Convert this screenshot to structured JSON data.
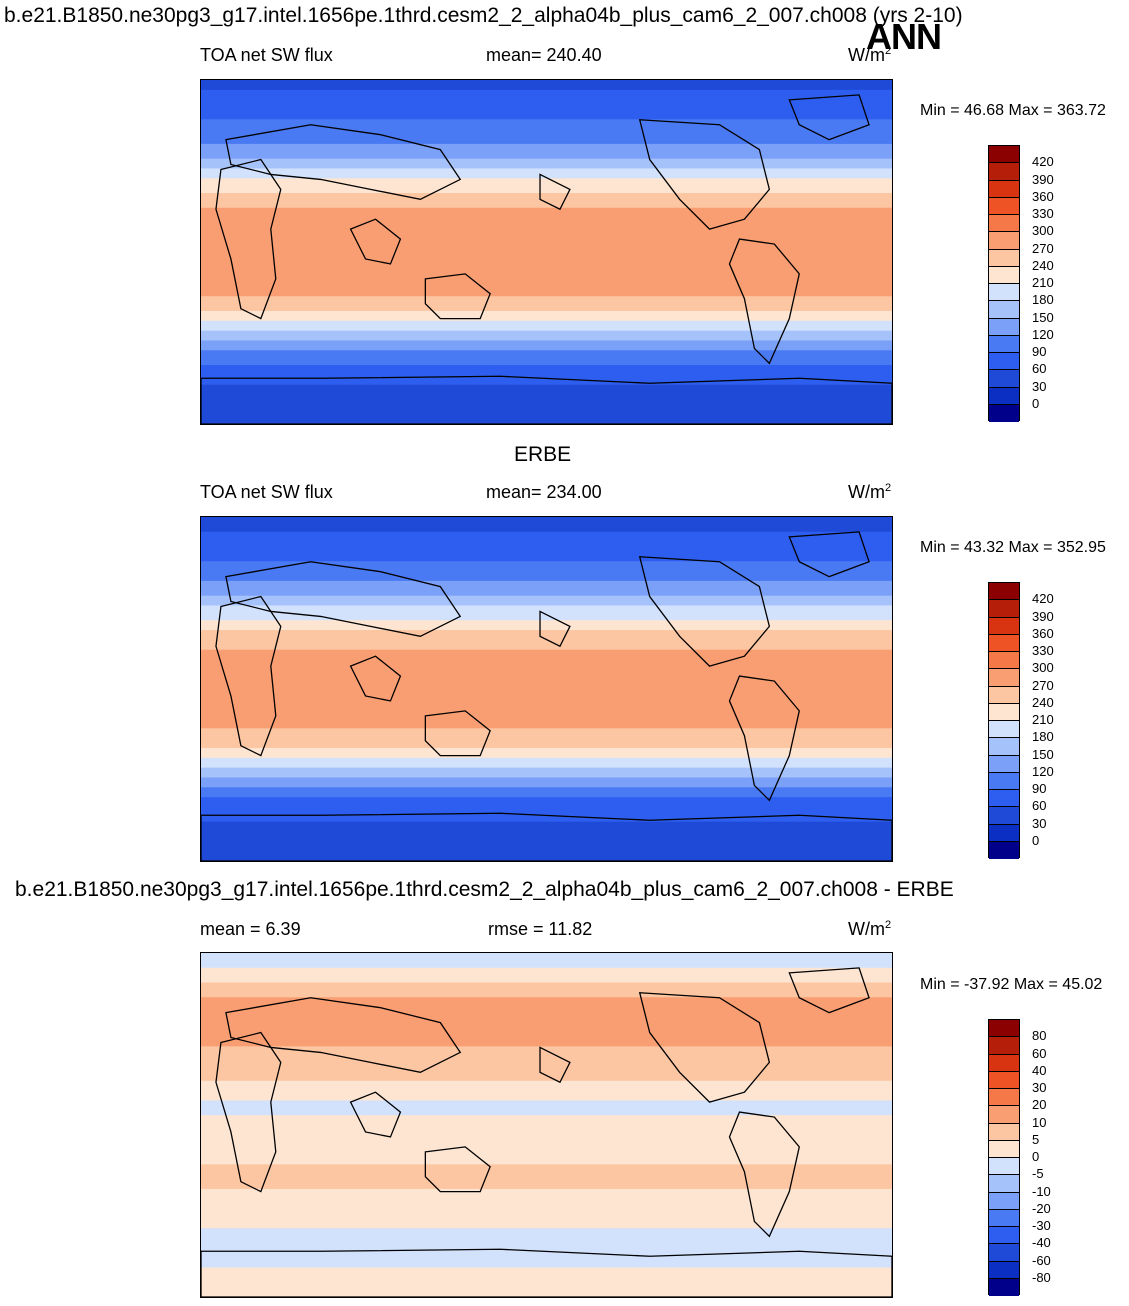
{
  "header": {
    "run_title": "b.e21.B1850.ne30pg3_g17.intel.1656pe.1thrd.cesm2_2_alpha04b_plus_cam6_2_007.ch008 (yrs 2-10)",
    "season": "ANN"
  },
  "colors": {
    "scale": [
      "#00008b",
      "#0a2fc2",
      "#1f4ad8",
      "#2e5ef0",
      "#4a7af3",
      "#7ba0f7",
      "#a6c2fa",
      "#d2e2fd",
      "#fde5d2",
      "#fcc6a2",
      "#f99e72",
      "#f47848",
      "#ed5325",
      "#d83412",
      "#b51e09",
      "#8b0000"
    ]
  },
  "chart_data": [
    {
      "type": "heatmap",
      "panel": "model",
      "title": "",
      "variable": "TOA net SW flux",
      "mean_label": "mean= 240.40",
      "mean": 240.4,
      "units": "W/m",
      "units_exp": "2",
      "min_max_label": "Min =  46.68 Max = 363.72",
      "min": 46.68,
      "max": 363.72,
      "colorbar_levels": [
        "420",
        "390",
        "360",
        "330",
        "300",
        "270",
        "240",
        "210",
        "180",
        "150",
        "120",
        "90",
        "60",
        "30",
        "0"
      ],
      "lat_profile": {
        "lat": [
          90,
          75,
          60,
          50,
          40,
          30,
          20,
          10,
          0,
          -10,
          -20,
          -30,
          -40,
          -50,
          -60,
          -75,
          -90
        ],
        "value": [
          45,
          80,
          110,
          150,
          200,
          250,
          275,
          290,
          300,
          295,
          280,
          250,
          190,
          130,
          80,
          50,
          40
        ]
      }
    },
    {
      "type": "heatmap",
      "panel": "obs",
      "title": "ERBE",
      "variable": "TOA net SW flux",
      "mean_label": "mean= 234.00",
      "mean": 234.0,
      "units": "W/m",
      "units_exp": "2",
      "min_max_label": "Min =  43.32 Max = 352.95",
      "min": 43.32,
      "max": 352.95,
      "colorbar_levels": [
        "420",
        "390",
        "360",
        "330",
        "300",
        "270",
        "240",
        "210",
        "180",
        "150",
        "120",
        "90",
        "60",
        "30",
        "0"
      ],
      "lat_profile": {
        "lat": [
          90,
          75,
          60,
          50,
          40,
          30,
          20,
          10,
          0,
          -10,
          -20,
          -30,
          -40,
          -50,
          -60,
          -75,
          -90
        ],
        "value": [
          45,
          75,
          105,
          145,
          195,
          245,
          270,
          285,
          295,
          290,
          275,
          245,
          185,
          125,
          75,
          50,
          40
        ]
      }
    },
    {
      "type": "heatmap",
      "panel": "difference",
      "title": "b.e21.B1850.ne30pg3_g17.intel.1656pe.1thrd.cesm2_2_alpha04b_plus_cam6_2_007.ch008 - ERBE",
      "variable": "",
      "mean_label": "mean =   6.39",
      "mean": 6.39,
      "rmse_label": "rmse =  11.82",
      "rmse": 11.82,
      "units": "W/m",
      "units_exp": "2",
      "min_max_label": "Min = -37.92 Max =  45.02",
      "min": -37.92,
      "max": 45.02,
      "colorbar_levels": [
        "80",
        "60",
        "40",
        "30",
        "20",
        "10",
        "5",
        "0",
        "-5",
        "-10",
        "-20",
        "-30",
        "-40",
        "-60",
        "-80"
      ],
      "lat_profile": {
        "lat": [
          90,
          75,
          60,
          50,
          40,
          30,
          20,
          10,
          0,
          -10,
          -20,
          -30,
          -40,
          -50,
          -60,
          -75,
          -90
        ],
        "value": [
          -5,
          5,
          15,
          12,
          10,
          8,
          4,
          -2,
          3,
          2,
          5,
          6,
          3,
          2,
          -2,
          0,
          1
        ]
      }
    }
  ]
}
